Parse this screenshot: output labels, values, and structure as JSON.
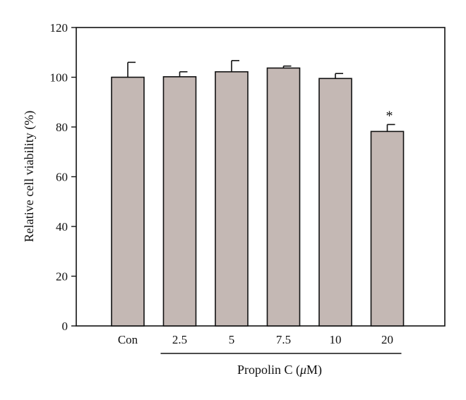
{
  "chart_data": {
    "type": "bar",
    "categories": [
      "Con",
      "2.5",
      "5",
      "7.5",
      "10",
      "20"
    ],
    "values": [
      100,
      100.2,
      102.2,
      103.7,
      99.5,
      78.2
    ],
    "errors": [
      6,
      2,
      4.5,
      0.8,
      2,
      2.8
    ],
    "annotations": [
      "",
      "",
      "",
      "",
      "",
      "*"
    ],
    "title": "",
    "ylabel": "Relative cell viability (%)",
    "xlabel": "Propolin C (μM)",
    "xlabel_parts": {
      "prefix": "Propolin C (",
      "unit": "μ",
      "suffix": "M)"
    },
    "xlabel_span": [
      "2.5",
      "20"
    ],
    "ylim": [
      0,
      120
    ],
    "yticks": [
      0,
      20,
      40,
      60,
      80,
      100,
      120
    ],
    "grid": false,
    "colors": {
      "bar_fill": "#c4b8b4",
      "bar_stroke": "#111111",
      "axis": "#111111"
    }
  }
}
